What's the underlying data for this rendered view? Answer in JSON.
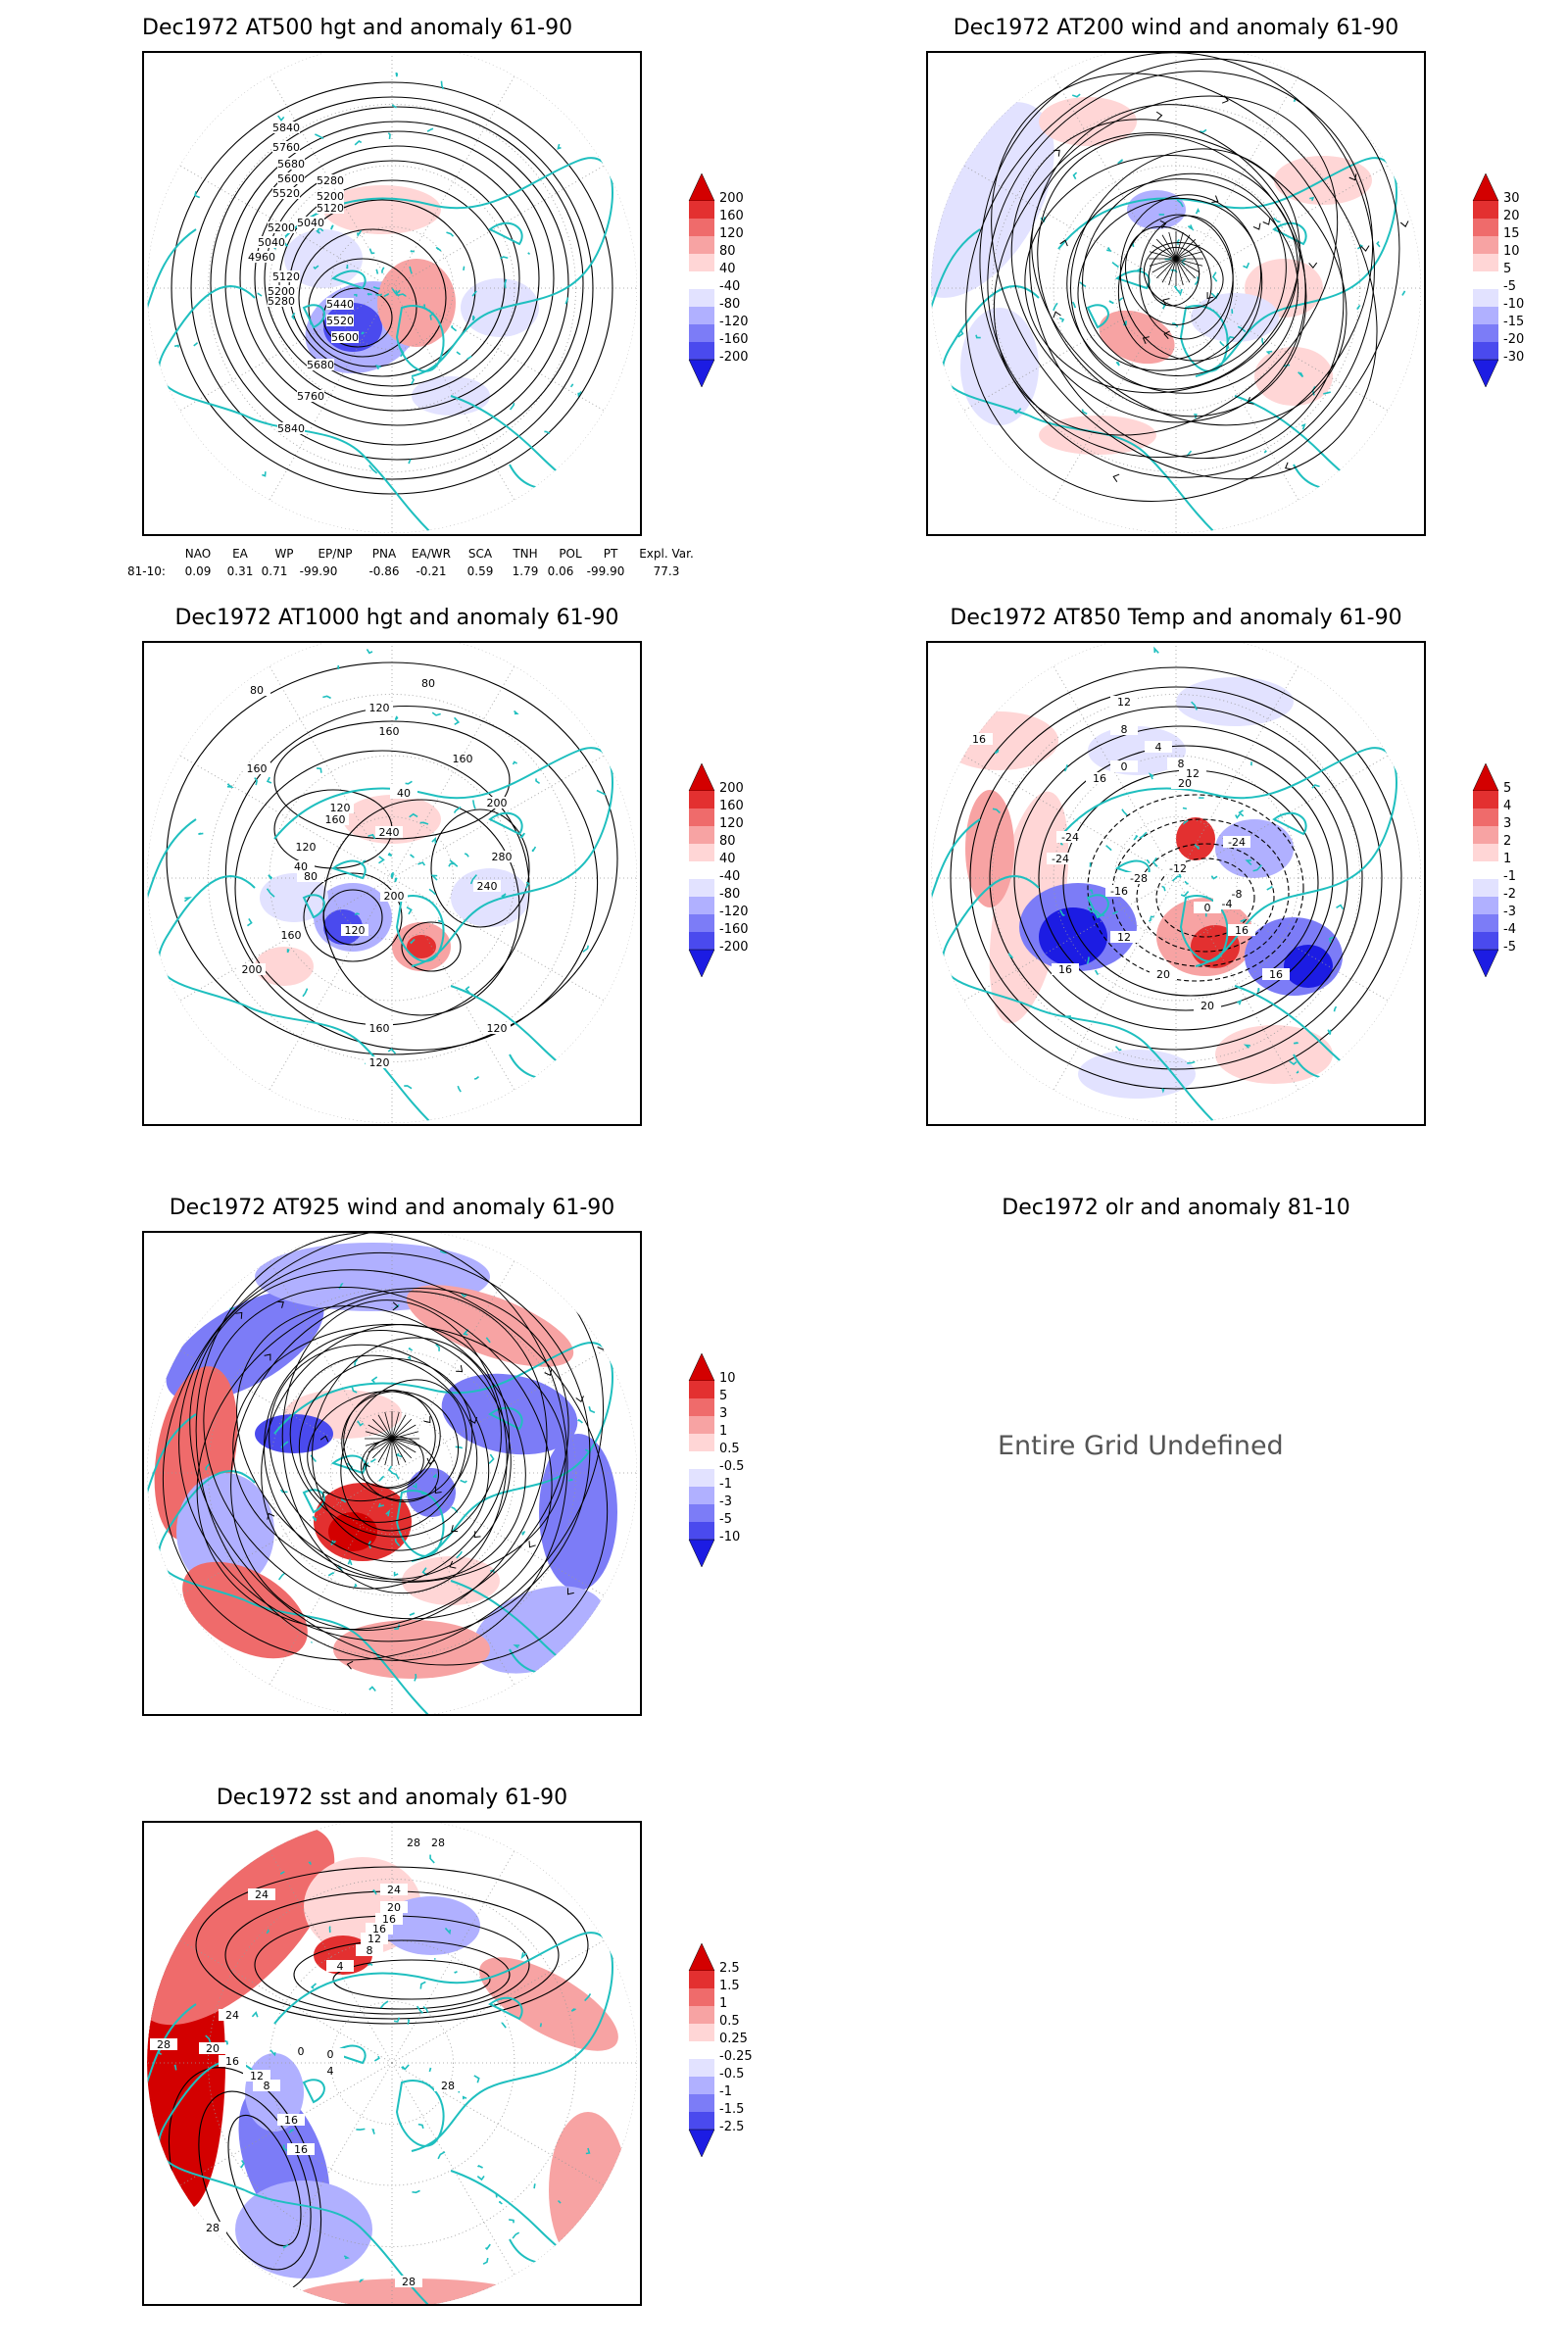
{
  "panels": [
    {
      "id": "p1",
      "title": "Dec1972 AT500 hgt and anomaly 61-90",
      "colorbar": [
        "200",
        "160",
        "120",
        "80",
        "40",
        "-40",
        "-80",
        "-120",
        "-160",
        "-200"
      ],
      "contour_labels": [
        "5840",
        "5760",
        "5680",
        "5600",
        "5520",
        "5280",
        "5200",
        "5120",
        "5040",
        "5200",
        "5040",
        "4960",
        "5120",
        "5200",
        "5280",
        "5440",
        "5520",
        "5600",
        "5680",
        "5760",
        "5840"
      ]
    },
    {
      "id": "p2",
      "title": "Dec1972 AT200 wind and anomaly 61-90",
      "colorbar": [
        "30",
        "20",
        "15",
        "10",
        "5",
        "-5",
        "-10",
        "-15",
        "-20",
        "-30"
      ]
    },
    {
      "id": "p3",
      "title": "Dec1972 AT1000 hgt and anomaly 61-90",
      "colorbar": [
        "200",
        "160",
        "120",
        "80",
        "40",
        "-40",
        "-80",
        "-120",
        "-160",
        "-200"
      ],
      "contour_labels": [
        "80",
        "80",
        "120",
        "160",
        "160",
        "160",
        "200",
        "40",
        "120",
        "160",
        "240",
        "280",
        "120",
        "40",
        "80",
        "240",
        "200",
        "120",
        "160",
        "200",
        "160",
        "120",
        "120"
      ]
    },
    {
      "id": "p4",
      "title": "Dec1972 AT850 Temp and anomaly 61-90",
      "colorbar": [
        "5",
        "4",
        "3",
        "2",
        "1",
        "-1",
        "-2",
        "-3",
        "-4",
        "-5"
      ],
      "contour_labels": [
        "12",
        "16",
        "8",
        "4",
        "0",
        "8",
        "12",
        "20",
        "16",
        "-24",
        "-24",
        "-28",
        "-16",
        "-12",
        "-24",
        "-8",
        "-4",
        "0",
        "16",
        "12",
        "20",
        "16",
        "16",
        "20"
      ]
    },
    {
      "id": "p5",
      "title": "Dec1972 AT925 wind and anomaly 61-90",
      "colorbar": [
        "10",
        "5",
        "3",
        "1",
        "0.5",
        "-0.5",
        "-1",
        "-3",
        "-5",
        "-10"
      ]
    },
    {
      "id": "p6",
      "title": "Dec1972 olr and anomaly 81-10",
      "undefined_text": "Entire Grid Undefined"
    },
    {
      "id": "p7",
      "title": "Dec1972 sst and anomaly 61-90",
      "colorbar": [
        "2.5",
        "1.5",
        "1",
        "0.5",
        "0.25",
        "-0.25",
        "-0.5",
        "-1",
        "-1.5",
        "-2.5"
      ],
      "contour_labels": [
        "28",
        "28",
        "24",
        "24",
        "20",
        "16",
        "16",
        "12",
        "8",
        "4",
        "28",
        "24",
        "20",
        "16",
        "12",
        "8",
        "0",
        "0",
        "4",
        "16",
        "16",
        "28",
        "28",
        "28"
      ]
    }
  ],
  "index_table": {
    "headers": [
      "NAO",
      "EA",
      "WP",
      "EP/NP",
      "PNA",
      "EA/WR",
      "SCA",
      "TNH",
      "POL",
      "PT",
      "Expl. Var."
    ],
    "row_label": "81-10:",
    "values": [
      "0.09",
      "0.31",
      "0.71",
      "-99.90",
      "-0.86",
      "-0.21",
      "0.59",
      "1.79",
      "0.06",
      "-99.90",
      "77.3"
    ]
  },
  "colors": {
    "coast": "#1fbfbf",
    "contour": "#000000",
    "pos": [
      "#ffd6d6",
      "#f7a3a3",
      "#ef6b6b",
      "#e33030",
      "#d30000"
    ],
    "neg": [
      "#e2e2ff",
      "#b0b0ff",
      "#7c7cf7",
      "#4a4aee",
      "#1c1ce3"
    ]
  }
}
